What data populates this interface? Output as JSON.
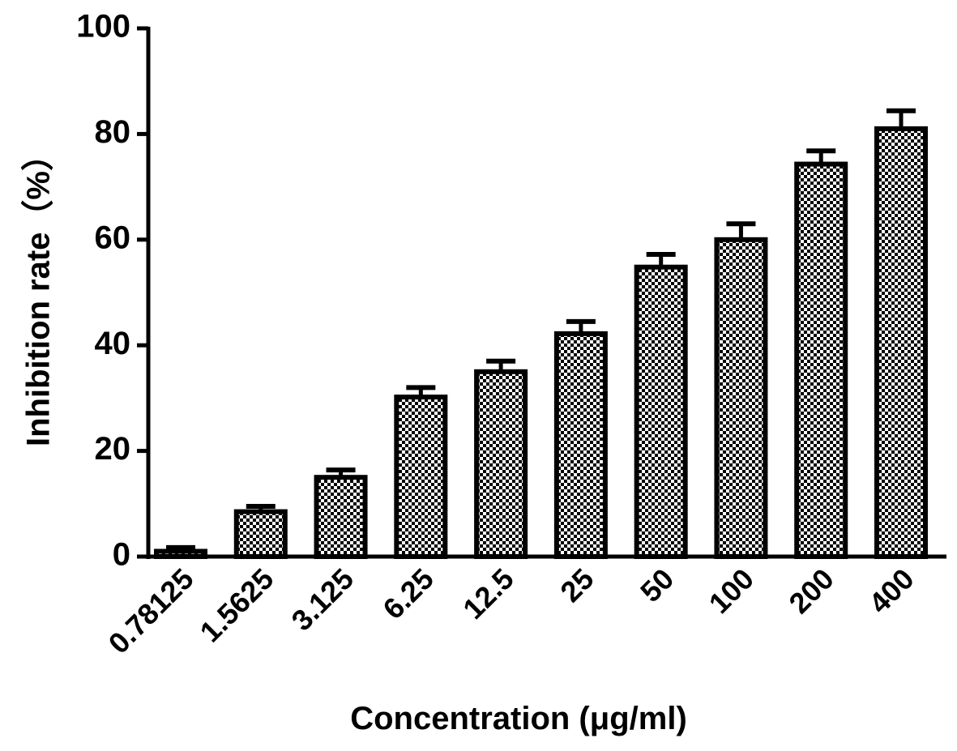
{
  "chart_data": {
    "type": "bar",
    "x_label": "Concentration (μg/ml)",
    "y_label": "Inhibition rate（%）",
    "categories": [
      "0.78125",
      "1.5625",
      "3.125",
      "6.25",
      "12.5",
      "25",
      "50",
      "100",
      "200",
      "400"
    ],
    "values": [
      1,
      8.5,
      15,
      30.2,
      35,
      42.2,
      54.8,
      60,
      74.3,
      81
    ],
    "errors": [
      0.7,
      1,
      1.4,
      1.8,
      2,
      2.3,
      2.4,
      3,
      2.5,
      3.4
    ],
    "color": "#000000",
    "ylim": [
      0,
      100
    ],
    "yticks": [
      0,
      20,
      40,
      60,
      80,
      100
    ]
  }
}
